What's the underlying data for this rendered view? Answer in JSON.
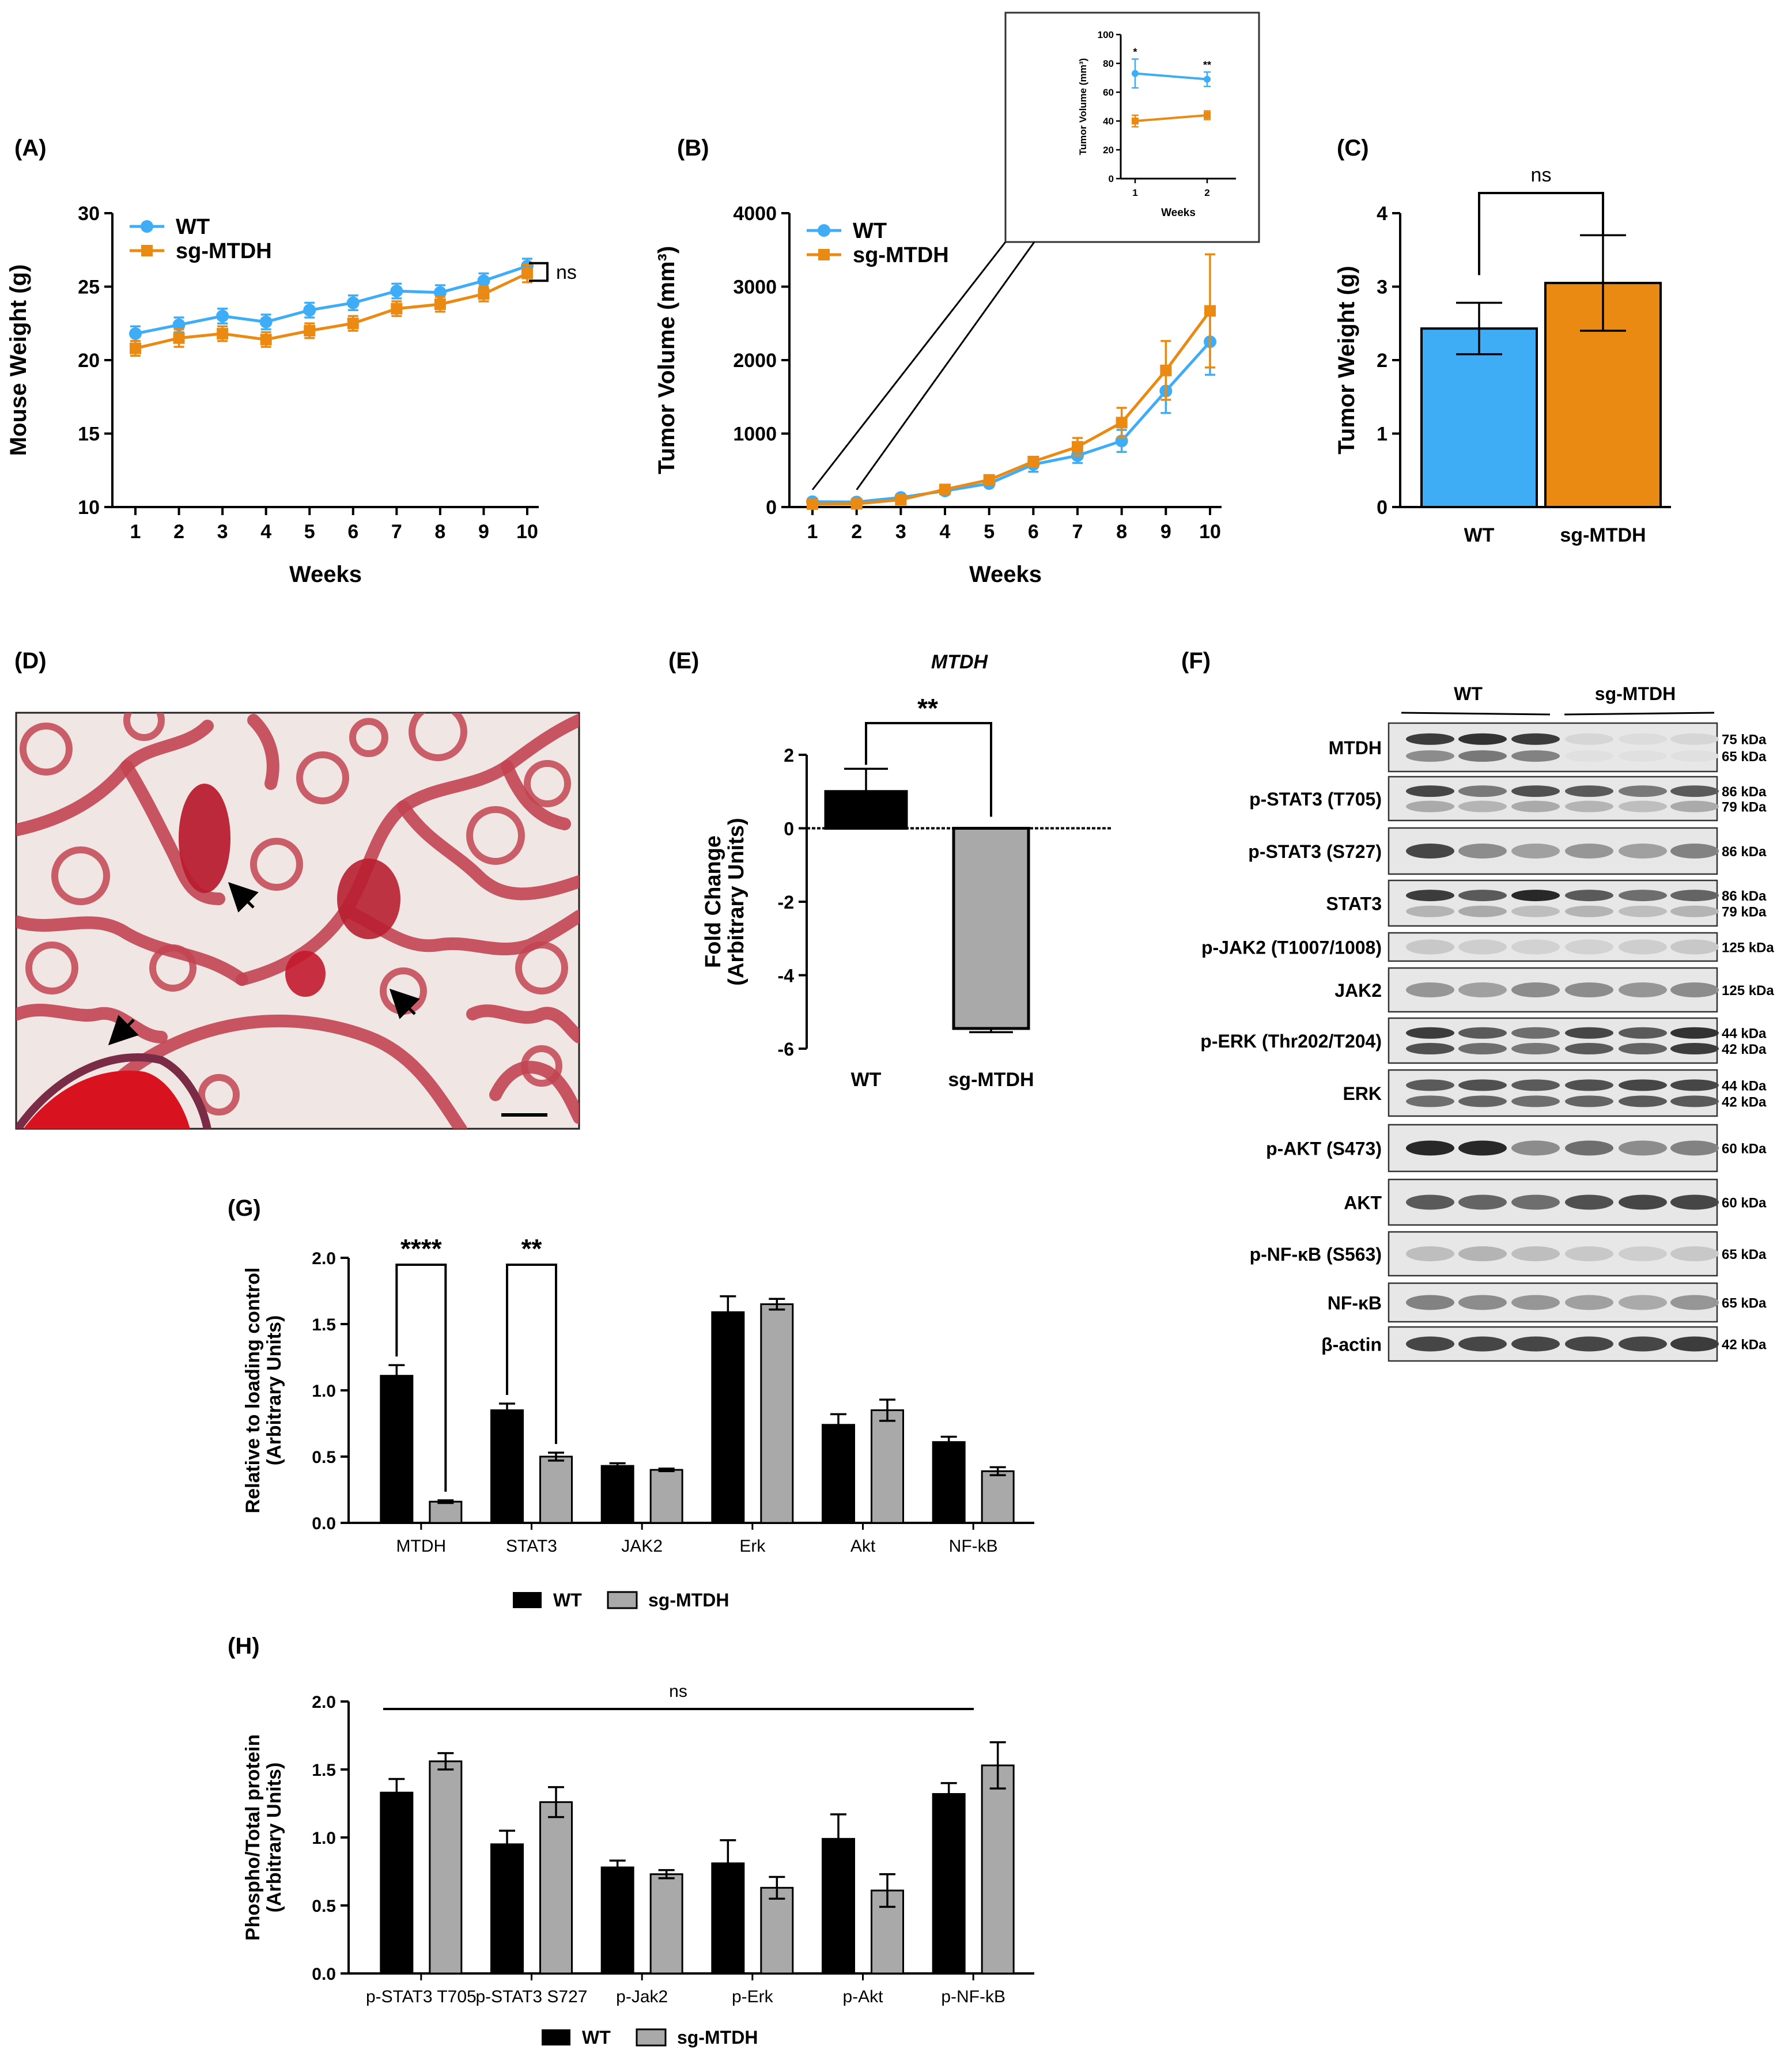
{
  "colors": {
    "wt": "#3EADF5",
    "sg": "#EA8A12",
    "black": "#000000",
    "gray": "#A9A9A9",
    "tissue": "#C24452",
    "vessel": "#D8121E",
    "bg_tissue": "#F0E6E3"
  },
  "panelA": {
    "label": "(A)",
    "chart_data": {
      "type": "line",
      "ylabel": "Mouse Weight (g)",
      "xlabel": "Weeks",
      "x": [
        1,
        2,
        3,
        4,
        5,
        6,
        7,
        8,
        9,
        10
      ],
      "ylim": [
        10,
        30
      ],
      "yticks": [
        10,
        15,
        20,
        25,
        30
      ],
      "series": [
        {
          "name": "WT",
          "values": [
            21.8,
            22.4,
            23.0,
            22.6,
            23.4,
            23.9,
            24.7,
            24.6,
            25.4,
            26.4
          ],
          "err": [
            0.5,
            0.5,
            0.5,
            0.5,
            0.5,
            0.5,
            0.5,
            0.5,
            0.5,
            0.5
          ]
        },
        {
          "name": "sg-MTDH",
          "values": [
            20.8,
            21.5,
            21.8,
            21.4,
            22.0,
            22.5,
            23.5,
            23.8,
            24.5,
            25.9
          ],
          "err": [
            0.5,
            0.6,
            0.5,
            0.5,
            0.5,
            0.5,
            0.5,
            0.5,
            0.5,
            0.6
          ]
        }
      ],
      "annotation": "ns"
    }
  },
  "panelB": {
    "label": "(B)",
    "chart_data": {
      "type": "line",
      "ylabel": "Tumor Volume (mm³)",
      "xlabel": "Weeks",
      "x": [
        1,
        2,
        3,
        4,
        5,
        6,
        7,
        8,
        9,
        10
      ],
      "ylim": [
        0,
        4000
      ],
      "yticks": [
        0,
        1000,
        2000,
        3000,
        4000
      ],
      "series": [
        {
          "name": "WT",
          "values": [
            73,
            69,
            130,
            220,
            320,
            580,
            700,
            900,
            1580,
            2250
          ],
          "err": [
            10,
            8,
            15,
            20,
            30,
            100,
            100,
            150,
            300,
            450
          ]
        },
        {
          "name": "sg-MTDH",
          "values": [
            40,
            44,
            100,
            240,
            370,
            620,
            820,
            1150,
            1860,
            2670
          ],
          "err": [
            6,
            5,
            15,
            25,
            30,
            60,
            120,
            200,
            400,
            770
          ]
        }
      ],
      "inset": {
        "ylabel": "Tumor Volume (mm³)",
        "xlabel": "Weeks",
        "x": [
          1,
          2
        ],
        "ylim": [
          0,
          100
        ],
        "yticks": [
          0,
          20,
          40,
          60,
          80,
          100
        ],
        "wt": [
          73,
          69
        ],
        "wt_err": [
          10,
          5
        ],
        "sg": [
          40,
          44
        ],
        "sg_err": [
          4,
          3
        ],
        "sig": [
          "*",
          "**"
        ]
      }
    }
  },
  "panelC": {
    "label": "(C)",
    "chart_data": {
      "type": "bar",
      "ylabel": "Tumor Weight (g)",
      "categories": [
        "WT",
        "sg-MTDH"
      ],
      "values": [
        2.43,
        3.05
      ],
      "err": [
        0.35,
        0.65
      ],
      "ylim": [
        0,
        4
      ],
      "yticks": [
        0,
        1,
        2,
        3,
        4
      ],
      "annotation": "ns"
    }
  },
  "panelD": {
    "label": "(D)"
  },
  "panelE": {
    "label": "(E)",
    "chart_data": {
      "type": "bar",
      "title": "MTDH",
      "ylabel": "Fold Change",
      "ylabel2": "(Arbitrary Units)",
      "categories": [
        "WT",
        "sg-MTDH"
      ],
      "values": [
        1.0,
        -5.45
      ],
      "err": [
        0.62,
        0.1
      ],
      "ylim": [
        -6,
        2
      ],
      "yticks": [
        -6,
        -4,
        -2,
        0,
        2
      ],
      "annotation": "**"
    }
  },
  "panelF": {
    "label": "(F)",
    "groups": [
      "WT",
      "sg-MTDH"
    ],
    "rows": [
      {
        "name": "MTDH",
        "kda": [
          "75 kDa",
          "65 kDa"
        ]
      },
      {
        "name": "p-STAT3 (T705)",
        "kda": [
          "86 kDa",
          "79 kDa"
        ]
      },
      {
        "name": "p-STAT3 (S727)",
        "kda": [
          "86 kDa"
        ]
      },
      {
        "name": "STAT3",
        "kda": [
          "86 kDa",
          "79 kDa"
        ]
      },
      {
        "name": "p-JAK2 (T1007/1008)",
        "kda": [
          "125 kDa"
        ]
      },
      {
        "name": "JAK2",
        "kda": [
          "125 kDa"
        ]
      },
      {
        "name": "p-ERK (Thr202/T204)",
        "kda": [
          "44 kDa",
          "42 kDa"
        ]
      },
      {
        "name": "ERK",
        "kda": [
          "44 kDa",
          "42 kDa"
        ]
      },
      {
        "name": "p-AKT (S473)",
        "kda": [
          "60 kDa"
        ]
      },
      {
        "name": "AKT",
        "kda": [
          "60 kDa"
        ]
      },
      {
        "name": "p-NF-κB (S563)",
        "kda": [
          "65 kDa"
        ]
      },
      {
        "name": "NF-κB",
        "kda": [
          "65 kDa"
        ]
      },
      {
        "name": "β-actin",
        "kda": [
          "42 kDa"
        ]
      }
    ]
  },
  "panelG": {
    "label": "(G)",
    "chart_data": {
      "type": "bar",
      "ylabel": "Relative to loading control",
      "ylabel2": "(Arbitrary Units)",
      "categories": [
        "MTDH",
        "STAT3",
        "JAK2",
        "Erk",
        "Akt",
        "NF-kB"
      ],
      "series": [
        {
          "name": "WT",
          "values": [
            1.11,
            0.85,
            0.43,
            1.59,
            0.74,
            0.61
          ],
          "err": [
            0.08,
            0.05,
            0.02,
            0.12,
            0.08,
            0.04
          ]
        },
        {
          "name": "sg-MTDH",
          "values": [
            0.16,
            0.5,
            0.4,
            1.65,
            0.85,
            0.39
          ],
          "err": [
            0.01,
            0.03,
            0.01,
            0.04,
            0.08,
            0.03
          ]
        }
      ],
      "ylim": [
        0,
        2.0
      ],
      "yticks": [
        "0.0",
        "0.5",
        "1.0",
        "1.5",
        "2.0"
      ],
      "annotations": [
        "****",
        "**"
      ]
    }
  },
  "panelH": {
    "label": "(H)",
    "chart_data": {
      "type": "bar",
      "ylabel": "Phospho/Total protein",
      "ylabel2": "(Arbitrary Units)",
      "categories": [
        "p-STAT3 T705",
        "p-STAT3 S727",
        "p-Jak2",
        "p-Erk",
        "p-Akt",
        "p-NF-kB"
      ],
      "series": [
        {
          "name": "WT",
          "values": [
            1.33,
            0.95,
            0.78,
            0.81,
            0.99,
            1.32
          ],
          "err": [
            0.1,
            0.1,
            0.05,
            0.17,
            0.18,
            0.08
          ]
        },
        {
          "name": "sg-MTDH",
          "values": [
            1.56,
            1.26,
            0.73,
            0.63,
            0.61,
            1.53
          ],
          "err": [
            0.06,
            0.11,
            0.03,
            0.08,
            0.12,
            0.17
          ]
        }
      ],
      "ylim": [
        0,
        2.0
      ],
      "yticks": [
        "0.0",
        "0.5",
        "1.0",
        "1.5",
        "2.0"
      ],
      "annotation": "ns"
    }
  }
}
